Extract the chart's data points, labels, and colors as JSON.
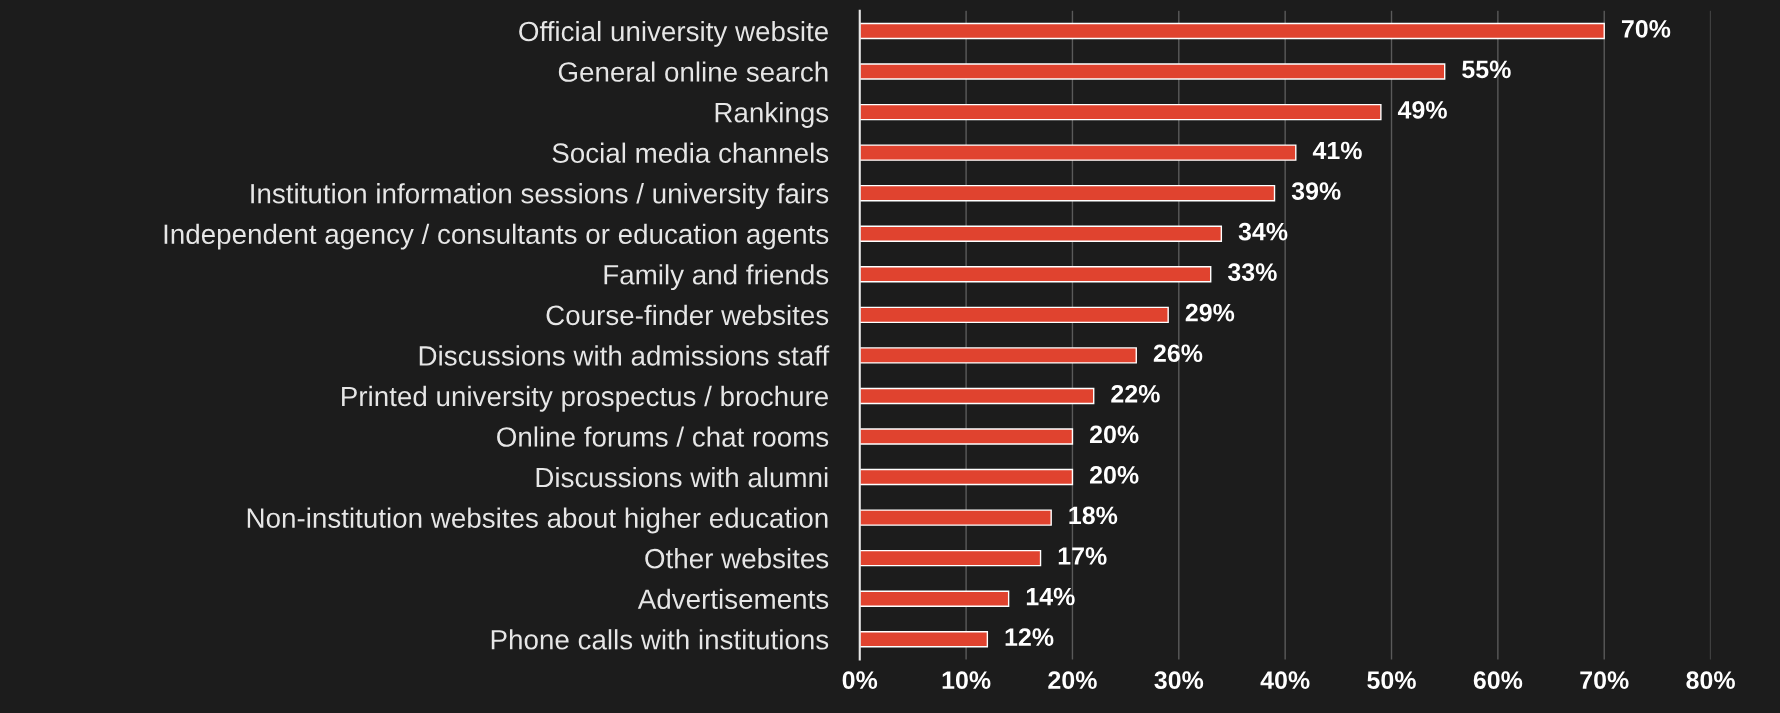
{
  "chart_data": {
    "type": "bar",
    "orientation": "horizontal",
    "categories": [
      "Official university website",
      "General online search",
      "Rankings",
      "Social media channels",
      "Institution information sessions / university fairs",
      "Independent agency / consultants or education agents",
      "Family and friends",
      "Course-finder websites",
      "Discussions with admissions staff",
      "Printed university prospectus / brochure",
      "Online forums / chat rooms",
      "Discussions with alumni",
      "Non-institution websites about higher education",
      "Other websites",
      "Advertisements",
      "Phone calls with institutions"
    ],
    "values": [
      70,
      55,
      49,
      41,
      39,
      34,
      33,
      29,
      26,
      22,
      20,
      20,
      18,
      17,
      14,
      12
    ],
    "value_labels": [
      "70%",
      "55%",
      "49%",
      "41%",
      "39%",
      "34%",
      "33%",
      "29%",
      "26%",
      "22%",
      "20%",
      "20%",
      "18%",
      "17%",
      "14%",
      "12%"
    ],
    "color": "#e0432f",
    "xlim": [
      0,
      80
    ],
    "xticks": [
      {
        "value": 0,
        "label": "0%"
      },
      {
        "value": 10,
        "label": "10%"
      },
      {
        "value": 20,
        "label": "20%"
      },
      {
        "value": 30,
        "label": "30%"
      },
      {
        "value": 40,
        "label": "40%"
      },
      {
        "value": 50,
        "label": "50%"
      },
      {
        "value": 60,
        "label": "60%"
      },
      {
        "value": 70,
        "label": "70%"
      },
      {
        "value": 80,
        "label": "80%"
      }
    ],
    "grid": "x"
  }
}
